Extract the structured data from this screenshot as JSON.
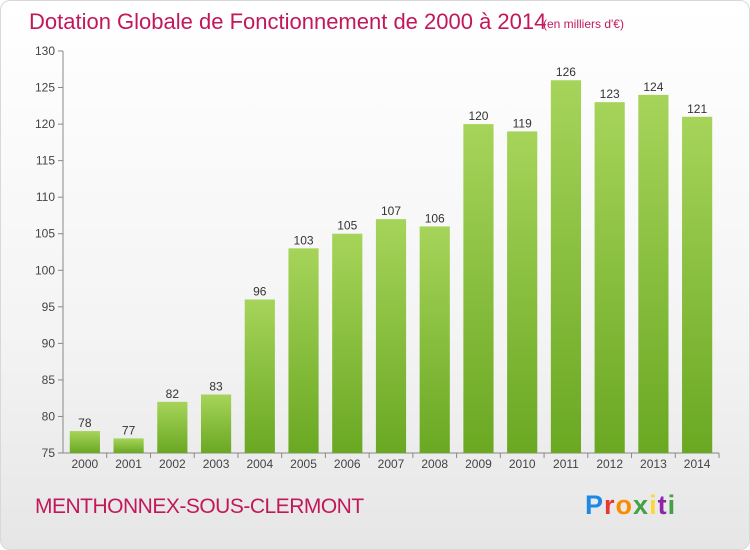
{
  "header": {
    "title": "Dotation Globale de Fonctionnement de 2000 à 2014",
    "subtitle": "(en milliers d'€)"
  },
  "footer": {
    "place": "MENTHONNEX-SOUS-CLERMONT",
    "logo": "Proxiti",
    "logo_letters": [
      "P",
      "r",
      "o",
      "x",
      "i",
      "t",
      "i"
    ],
    "logo_colors": [
      "#1e88e5",
      "#e53935",
      "#fb8c00",
      "#43a047",
      "#fdd835",
      "#8e24aa",
      "#43a047"
    ]
  },
  "colors": {
    "accent": "#c2185b",
    "bar_light": "#a6d45a",
    "bar_dark": "#6aa822"
  },
  "chart_data": {
    "type": "bar",
    "title": "Dotation Globale de Fonctionnement de 2000 à 2014",
    "subtitle": "(en milliers d'€)",
    "xlabel": "",
    "ylabel": "",
    "categories": [
      "2000",
      "2001",
      "2002",
      "2003",
      "2004",
      "2005",
      "2006",
      "2007",
      "2008",
      "2009",
      "2010",
      "2011",
      "2012",
      "2013",
      "2014"
    ],
    "values": [
      78,
      77,
      82,
      83,
      96,
      103,
      105,
      107,
      106,
      120,
      119,
      126,
      123,
      124,
      121
    ],
    "data_labels": [
      "78",
      "77",
      "82",
      "83",
      "96",
      "103",
      "105",
      "107",
      "106",
      "120",
      "119",
      "126",
      "123",
      "124",
      "121"
    ],
    "ylim": [
      75,
      130
    ],
    "yticks": [
      75,
      80,
      85,
      90,
      95,
      100,
      105,
      110,
      115,
      120,
      125,
      130
    ],
    "ytick_labels": [
      "75",
      "80",
      "85",
      "90",
      "95",
      "100",
      "105",
      "110",
      "115",
      "120",
      "125",
      "130"
    ],
    "grid": false,
    "legend": "none"
  }
}
